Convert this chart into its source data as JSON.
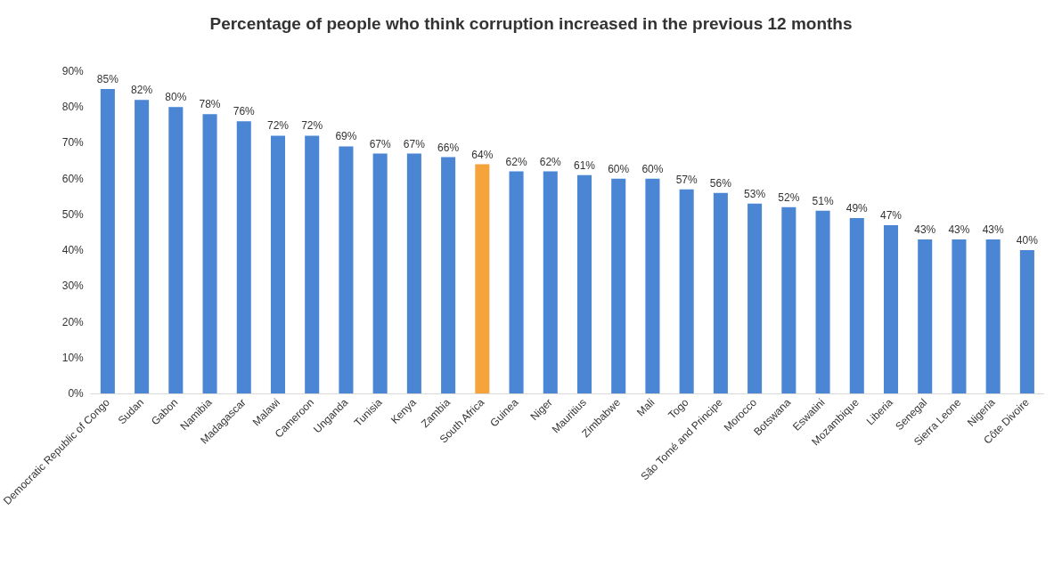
{
  "chart_data": {
    "type": "bar",
    "title": "Percentage of people who think corruption increased in the previous 12 months",
    "categories": [
      "Democratic Republic of Congo",
      "Sudan",
      "Gabon",
      "Namibia",
      "Madagascar",
      "Malawi",
      "Cameroon",
      "Unganda",
      "Tunisia",
      "Kenya",
      "Zambia",
      "South Africa",
      "Guinea",
      "Niger",
      "Mauritius",
      "Zimbabwe",
      "Mali",
      "Togo",
      "São Tomé and Principe",
      "Morocco",
      "Botswana",
      "Eswatini",
      "Mozambique",
      "Liberia",
      "Senegal",
      "Sierra Leone",
      "Nigeria",
      "Côte Divoire"
    ],
    "values": [
      85,
      82,
      80,
      78,
      76,
      72,
      72,
      69,
      67,
      67,
      66,
      64,
      62,
      62,
      61,
      60,
      60,
      57,
      56,
      53,
      52,
      51,
      49,
      47,
      43,
      43,
      43,
      40
    ],
    "value_labels": [
      "85%",
      "82%",
      "80%",
      "78%",
      "76%",
      "72%",
      "72%",
      "69%",
      "67%",
      "67%",
      "66%",
      "64%",
      "62%",
      "62%",
      "61%",
      "60%",
      "60%",
      "57%",
      "56%",
      "53%",
      "52%",
      "51%",
      "49%",
      "47%",
      "43%",
      "43%",
      "43%",
      "40%"
    ],
    "colors": [
      "#4a86d4",
      "#4a86d4",
      "#4a86d4",
      "#4a86d4",
      "#4a86d4",
      "#4a86d4",
      "#4a86d4",
      "#4a86d4",
      "#4a86d4",
      "#4a86d4",
      "#4a86d4",
      "#f5a33a",
      "#4a86d4",
      "#4a86d4",
      "#4a86d4",
      "#4a86d4",
      "#4a86d4",
      "#4a86d4",
      "#4a86d4",
      "#4a86d4",
      "#4a86d4",
      "#4a86d4",
      "#4a86d4",
      "#4a86d4",
      "#4a86d4",
      "#4a86d4",
      "#4a86d4",
      "#4a86d4"
    ],
    "ylim": [
      0,
      90
    ],
    "yticks": [
      {
        "value": 0,
        "label": "0%"
      },
      {
        "value": 10,
        "label": "10%"
      },
      {
        "value": 20,
        "label": "20%"
      },
      {
        "value": 30,
        "label": "30%"
      },
      {
        "value": 40,
        "label": "40%"
      },
      {
        "value": 50,
        "label": "50%"
      },
      {
        "value": 60,
        "label": "60%"
      },
      {
        "value": 70,
        "label": "70%"
      },
      {
        "value": 80,
        "label": "80%"
      },
      {
        "value": 90,
        "label": "90%"
      }
    ],
    "grid": false
  }
}
